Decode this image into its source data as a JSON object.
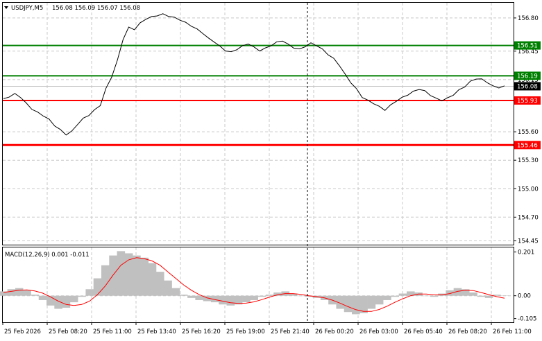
{
  "header": {
    "symbol_tf": "USDJPY,M5",
    "ohlc": "156.08 156.09 156.07 156.08",
    "macd_label": "MACD(12,26,9) 0.001 -0.011"
  },
  "colors": {
    "green_level": "#008000",
    "red_level": "#ff0000",
    "price_line": "#000000",
    "histogram": "#c0c0c0",
    "signal_line": "#ff0000",
    "grid": "#c8c8c8",
    "bid_line": "#c0c0c0"
  },
  "chart_data": [
    {
      "type": "line",
      "title": "USDJPY,M5",
      "x_ticks": [
        "25 Feb 2026",
        "25 Feb 08:20",
        "25 Feb 11:00",
        "25 Feb 13:40",
        "25 Feb 16:20",
        "25 Feb 19:00",
        "25 Feb 21:40",
        "26 Feb 00:20",
        "26 Feb 03:00",
        "26 Feb 05:40",
        "26 Feb 08:20",
        "26 Feb 11:00"
      ],
      "y_ticks": [
        "156.80",
        "156.45",
        "156.15",
        "155.60",
        "155.30",
        "155.00",
        "154.70",
        "154.45"
      ],
      "ylim": [
        154.41,
        156.96
      ],
      "series": [
        {
          "values": [
            155.94,
            155.97,
            156.0,
            155.97,
            155.9,
            155.84,
            155.8,
            155.77,
            155.73,
            155.67,
            155.62,
            155.57,
            155.6,
            155.68,
            155.74,
            155.78,
            155.83,
            155.88,
            156.05,
            156.18,
            156.35,
            156.58,
            156.7,
            156.68,
            156.74,
            156.79,
            156.81,
            156.83,
            156.84,
            156.82,
            156.8,
            156.78,
            156.75,
            156.72,
            156.68,
            156.64,
            156.58,
            156.55,
            156.5,
            156.46,
            156.44,
            156.47,
            156.5,
            156.53,
            156.49,
            156.46,
            156.48,
            156.51,
            156.54,
            156.56,
            156.52,
            156.49,
            156.47,
            156.5,
            156.53,
            156.51,
            156.47,
            156.42,
            156.37,
            156.3,
            156.2,
            156.12,
            156.05,
            155.97,
            155.93,
            155.9,
            155.86,
            155.83,
            155.88,
            155.93,
            155.96,
            155.99,
            156.02,
            156.05,
            156.03,
            155.99,
            155.95,
            155.93,
            155.95,
            155.99,
            156.04,
            156.08,
            156.13,
            156.16,
            156.15,
            156.12,
            156.08,
            156.07,
            156.08
          ]
        }
      ],
      "levels": [
        {
          "label": "156.51",
          "value": 156.51,
          "color": "green"
        },
        {
          "label": "156.19",
          "value": 156.19,
          "color": "green"
        },
        {
          "label": "155.93",
          "value": 155.93,
          "color": "red"
        },
        {
          "label": "155.46",
          "value": 155.46,
          "color": "red"
        }
      ],
      "current_price": "156.08",
      "current_value": 156.08
    },
    {
      "type": "bar",
      "title": "MACD(12,26,9) 0.001 -0.011",
      "y_ticks": [
        "0.201",
        "0.00",
        "-0.105"
      ],
      "ylim": [
        -0.122,
        0.222
      ],
      "histogram": [
        0.02,
        0.03,
        0.035,
        0.025,
        0.005,
        -0.02,
        -0.045,
        -0.06,
        -0.055,
        -0.03,
        -0.005,
        0.03,
        0.08,
        0.14,
        0.185,
        0.205,
        0.195,
        0.185,
        0.175,
        0.15,
        0.11,
        0.07,
        0.035,
        0.005,
        -0.01,
        -0.02,
        -0.025,
        -0.03,
        -0.04,
        -0.045,
        -0.04,
        -0.03,
        -0.02,
        -0.005,
        0.005,
        0.015,
        0.02,
        0.01,
        0.0,
        -0.005,
        -0.01,
        -0.02,
        -0.04,
        -0.06,
        -0.075,
        -0.085,
        -0.08,
        -0.06,
        -0.04,
        -0.02,
        -0.005,
        0.01,
        0.02,
        0.015,
        0.0,
        -0.005,
        0.01,
        0.025,
        0.035,
        0.03,
        0.015,
        -0.005,
        -0.01,
        0.005,
        0.001
      ],
      "signal": [
        0.015,
        0.02,
        0.025,
        0.027,
        0.022,
        0.012,
        -0.005,
        -0.025,
        -0.04,
        -0.045,
        -0.04,
        -0.025,
        0.005,
        0.045,
        0.095,
        0.14,
        0.165,
        0.175,
        0.17,
        0.16,
        0.14,
        0.11,
        0.08,
        0.05,
        0.025,
        0.005,
        -0.01,
        -0.018,
        -0.025,
        -0.032,
        -0.035,
        -0.034,
        -0.028,
        -0.018,
        -0.006,
        0.004,
        0.01,
        0.01,
        0.006,
        0.0,
        -0.004,
        -0.01,
        -0.02,
        -0.034,
        -0.05,
        -0.064,
        -0.072,
        -0.072,
        -0.063,
        -0.048,
        -0.03,
        -0.014,
        0.0,
        0.008,
        0.008,
        0.004,
        0.004,
        0.01,
        0.02,
        0.025,
        0.024,
        0.015,
        0.005,
        -0.004,
        -0.011
      ]
    }
  ]
}
